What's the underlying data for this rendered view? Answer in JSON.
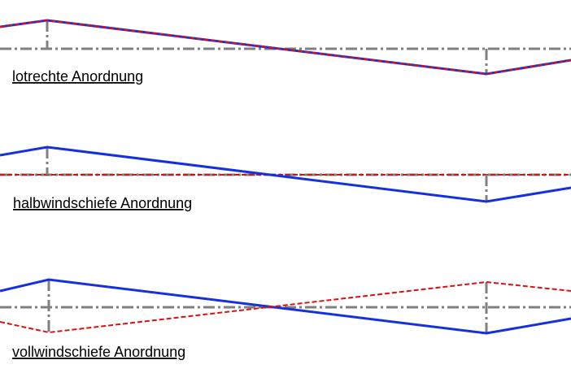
{
  "labels": [
    "lotrechte Anordnung",
    "halbwindschiefe Anordnung",
    "vollwindschiefe Anordnung"
  ]
}
